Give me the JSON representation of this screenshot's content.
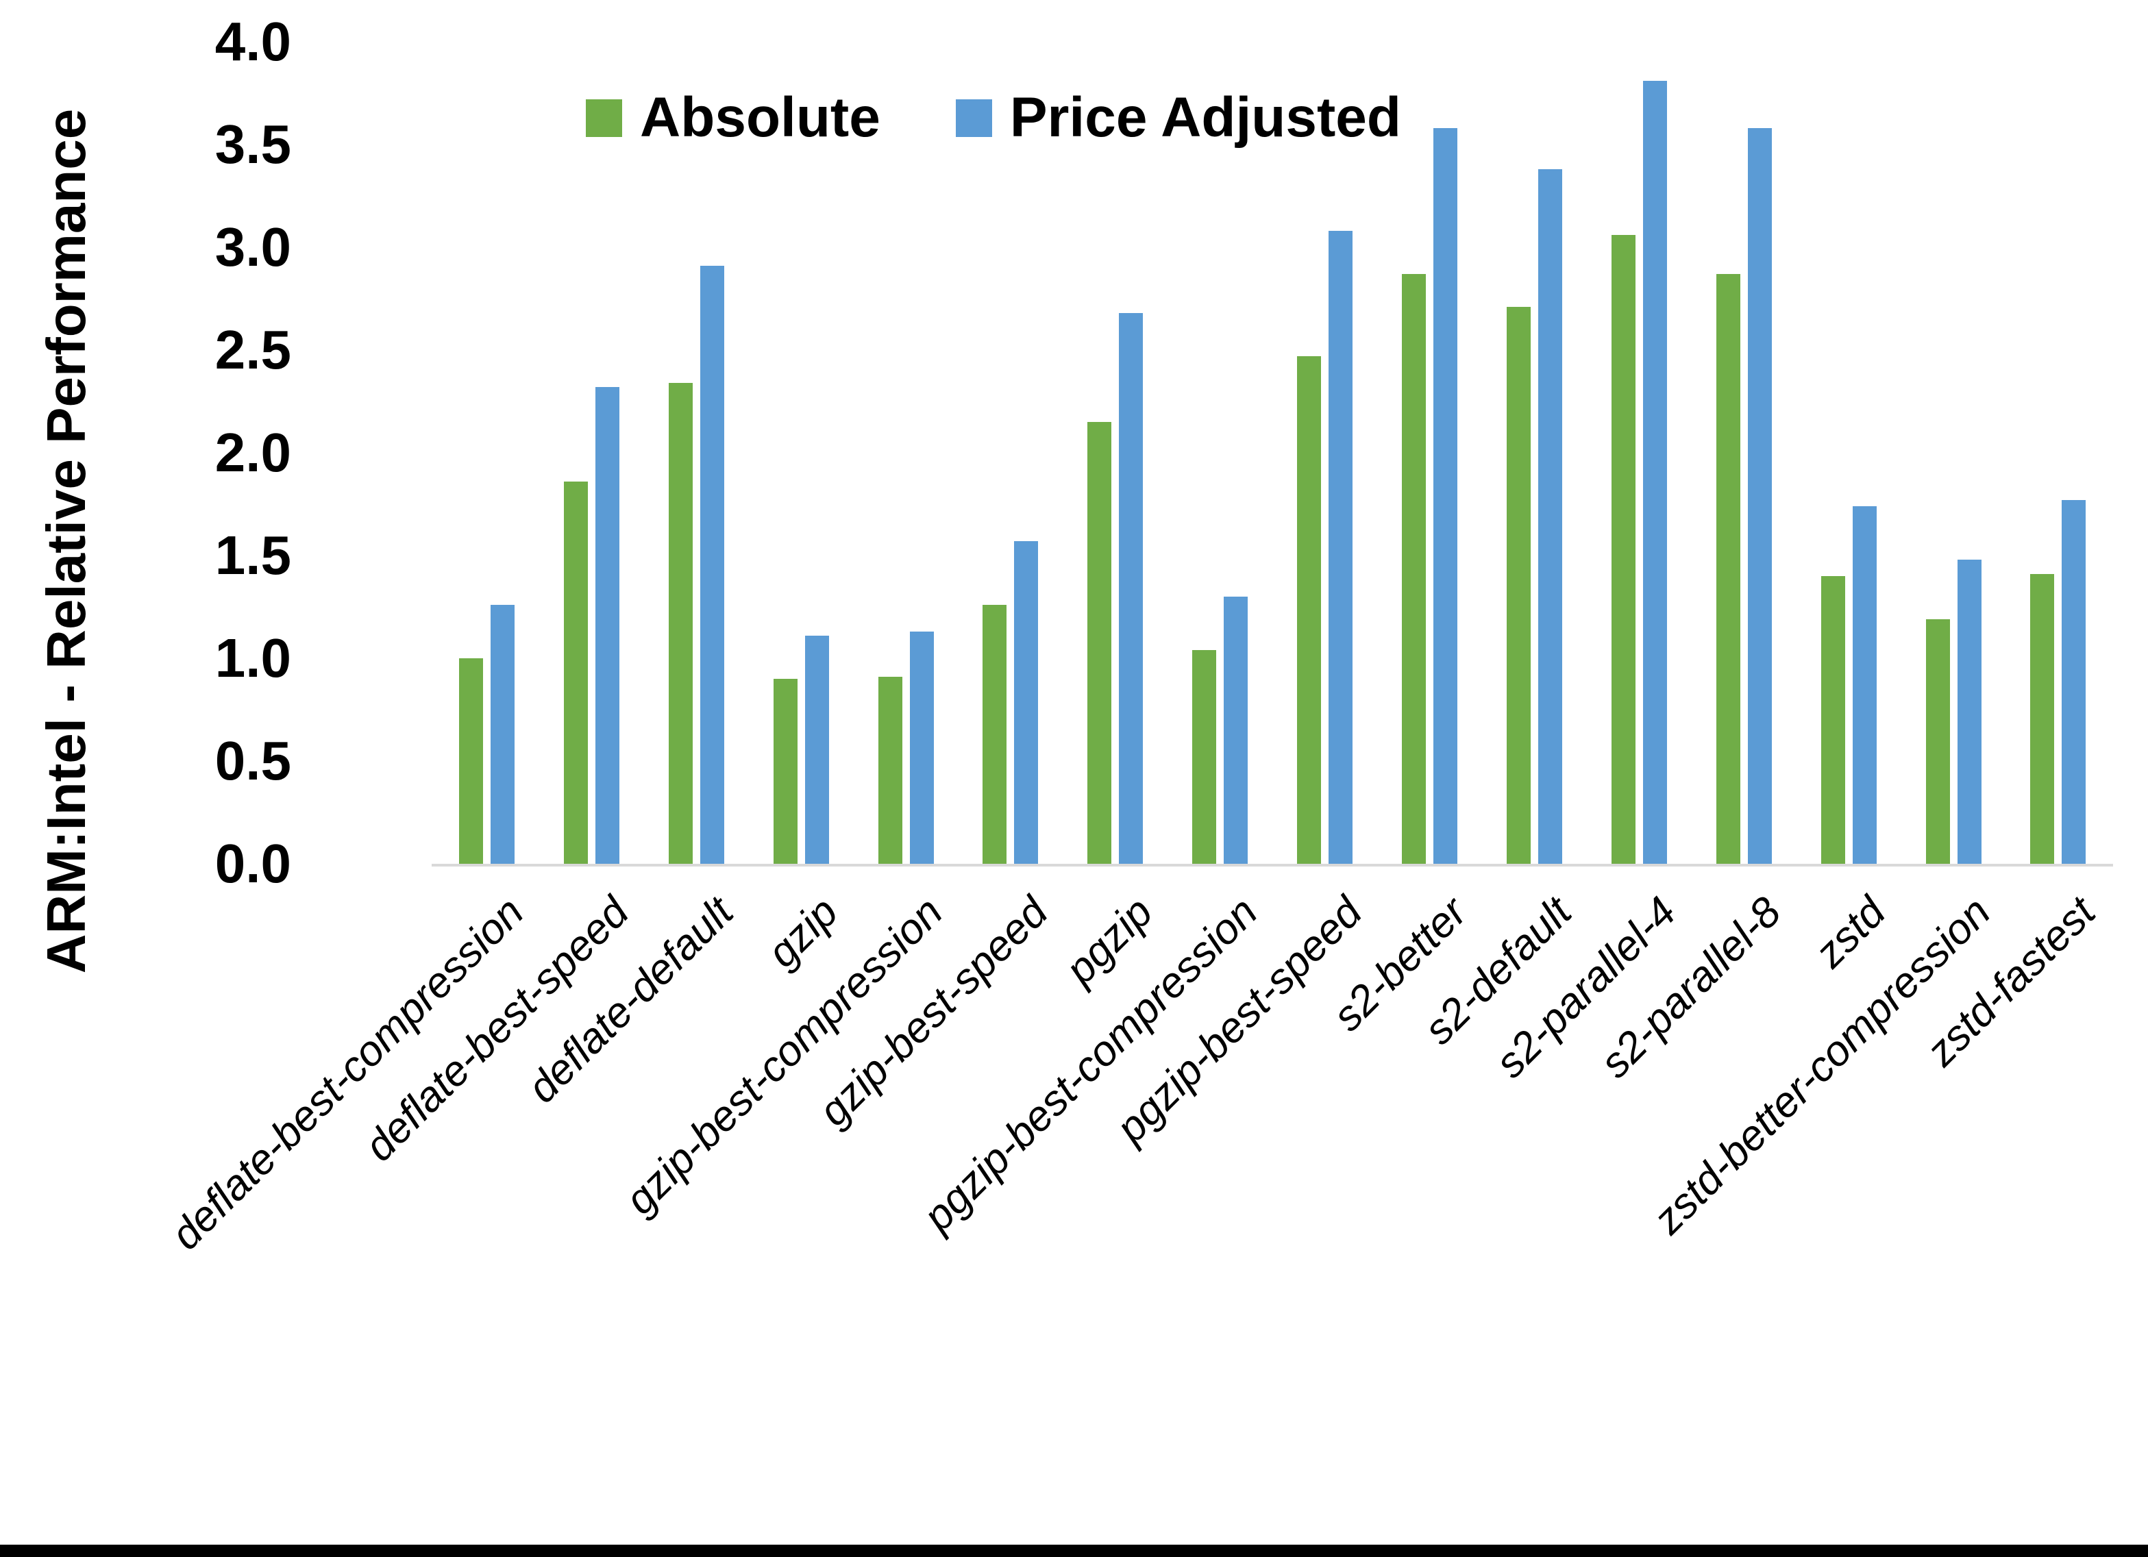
{
  "chart_data": {
    "type": "bar",
    "title": "",
    "xlabel": "",
    "ylabel": "ARM:Intel - Relative Performance",
    "ylim": [
      0.0,
      4.0
    ],
    "ytick_step": 0.5,
    "yticks": [
      "0.0",
      "0.5",
      "1.0",
      "1.5",
      "2.0",
      "2.5",
      "3.0",
      "3.5",
      "4.0"
    ],
    "grid": false,
    "legend_position": "top-center",
    "categories": [
      "deflate-best-compression",
      "deflate-best-speed",
      "deflate-default",
      "gzip",
      "gzip-best-compression",
      "gzip-best-speed",
      "pgzip",
      "pgzip-best-compression",
      "pgzip-best-speed",
      "s2-better",
      "s2-default",
      "s2-parallel-4",
      "s2-parallel-8",
      "zstd",
      "zstd-better-compression",
      "zstd-fastest"
    ],
    "series": [
      {
        "name": "Absolute",
        "color": "#70AD47",
        "values": [
          1.0,
          1.86,
          2.34,
          0.9,
          0.91,
          1.26,
          2.15,
          1.04,
          2.47,
          2.87,
          2.71,
          3.06,
          2.87,
          1.4,
          1.19,
          1.41
        ]
      },
      {
        "name": "Price Adjusted",
        "color": "#5B9BD5",
        "values": [
          1.26,
          2.32,
          2.91,
          1.11,
          1.13,
          1.57,
          2.68,
          1.3,
          3.08,
          3.58,
          3.38,
          3.81,
          3.58,
          1.74,
          1.48,
          1.77
        ]
      }
    ]
  },
  "colors": {
    "background": "#FFFFFF",
    "axis_line": "#D9D9D9",
    "text": "#000000",
    "bottom_strip": "#000000"
  }
}
